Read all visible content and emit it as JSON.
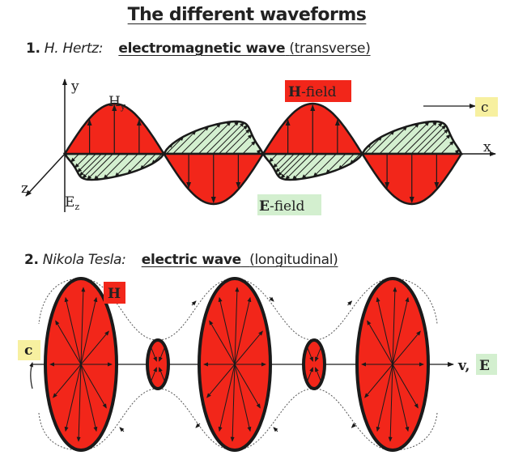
{
  "title": "The  different waveforms",
  "section1": {
    "number": "1.",
    "author": "H. Hertz:",
    "wave": "electromagnetic wave",
    "kind": "(transverse)",
    "labels": {
      "y_axis": "y",
      "x_axis": "x",
      "z_axis": "z",
      "h_component": "H",
      "h_sub": "y",
      "e_component": "E",
      "e_sub": "z",
      "h_field_bold": "H",
      "h_field_rest": "-field",
      "e_field_bold": "E",
      "e_field_rest": "-field",
      "speed": "c"
    }
  },
  "section2": {
    "number": "2.",
    "author": "Nikola Tesla:",
    "wave": "electric wave",
    "kind": "(longitudinal)",
    "labels": {
      "h": "H",
      "speed": "c",
      "v": "v,",
      "e": "E"
    }
  },
  "colors": {
    "red": "#f2261a",
    "green": "#d3efcf",
    "yellow": "#f7f0a0",
    "ink": "#1a1a1a"
  }
}
